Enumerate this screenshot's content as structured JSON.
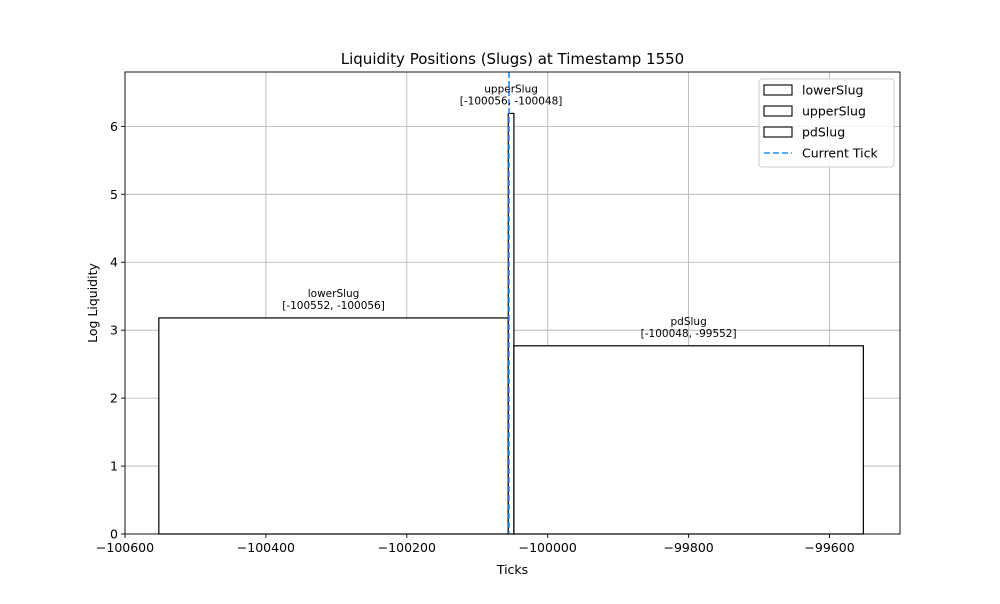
{
  "chart_data": {
    "type": "bar",
    "title": "Liquidity Positions (Slugs) at Timestamp 1550",
    "xlabel": "Ticks",
    "ylabel": "Log Liquidity",
    "xlim": [
      -100600,
      -99500
    ],
    "ylim": [
      0,
      6.8
    ],
    "xticks": [
      -100600,
      -100400,
      -100200,
      -100000,
      -99800,
      -99600
    ],
    "xtick_labels": [
      "−100600",
      "−100400",
      "−100200",
      "−100000",
      "−99800",
      "−99600"
    ],
    "yticks": [
      0,
      1,
      2,
      3,
      4,
      5,
      6
    ],
    "ytick_labels": [
      "0",
      "1",
      "2",
      "3",
      "4",
      "5",
      "6"
    ],
    "grid": true,
    "legend_position": "top-right",
    "bars": [
      {
        "name": "lowerSlug",
        "x_start": -100552,
        "x_end": -100056,
        "value": 3.18,
        "label_name": "lowerSlug",
        "label_range": "[-100552, -100056]",
        "fill": "#ffffff",
        "edge": "#000000"
      },
      {
        "name": "upperSlug",
        "x_start": -100056,
        "x_end": -100048,
        "value": 6.19,
        "label_name": "upperSlug",
        "label_range": "[-100056, -100048]",
        "fill": "#ffffff",
        "edge": "#000000"
      },
      {
        "name": "pdSlug",
        "x_start": -100048,
        "x_end": -99552,
        "value": 2.77,
        "label_name": "pdSlug",
        "label_range": "[-100048, -99552]",
        "fill": "#ffffff",
        "edge": "#000000"
      }
    ],
    "current_tick": {
      "name": "Current Tick",
      "x": -100055,
      "color": "#1e90ff",
      "style": "dashed"
    },
    "legend": [
      {
        "label": "lowerSlug",
        "kind": "patch"
      },
      {
        "label": "upperSlug",
        "kind": "patch"
      },
      {
        "label": "pdSlug",
        "kind": "patch"
      },
      {
        "label": "Current Tick",
        "kind": "line"
      }
    ]
  }
}
